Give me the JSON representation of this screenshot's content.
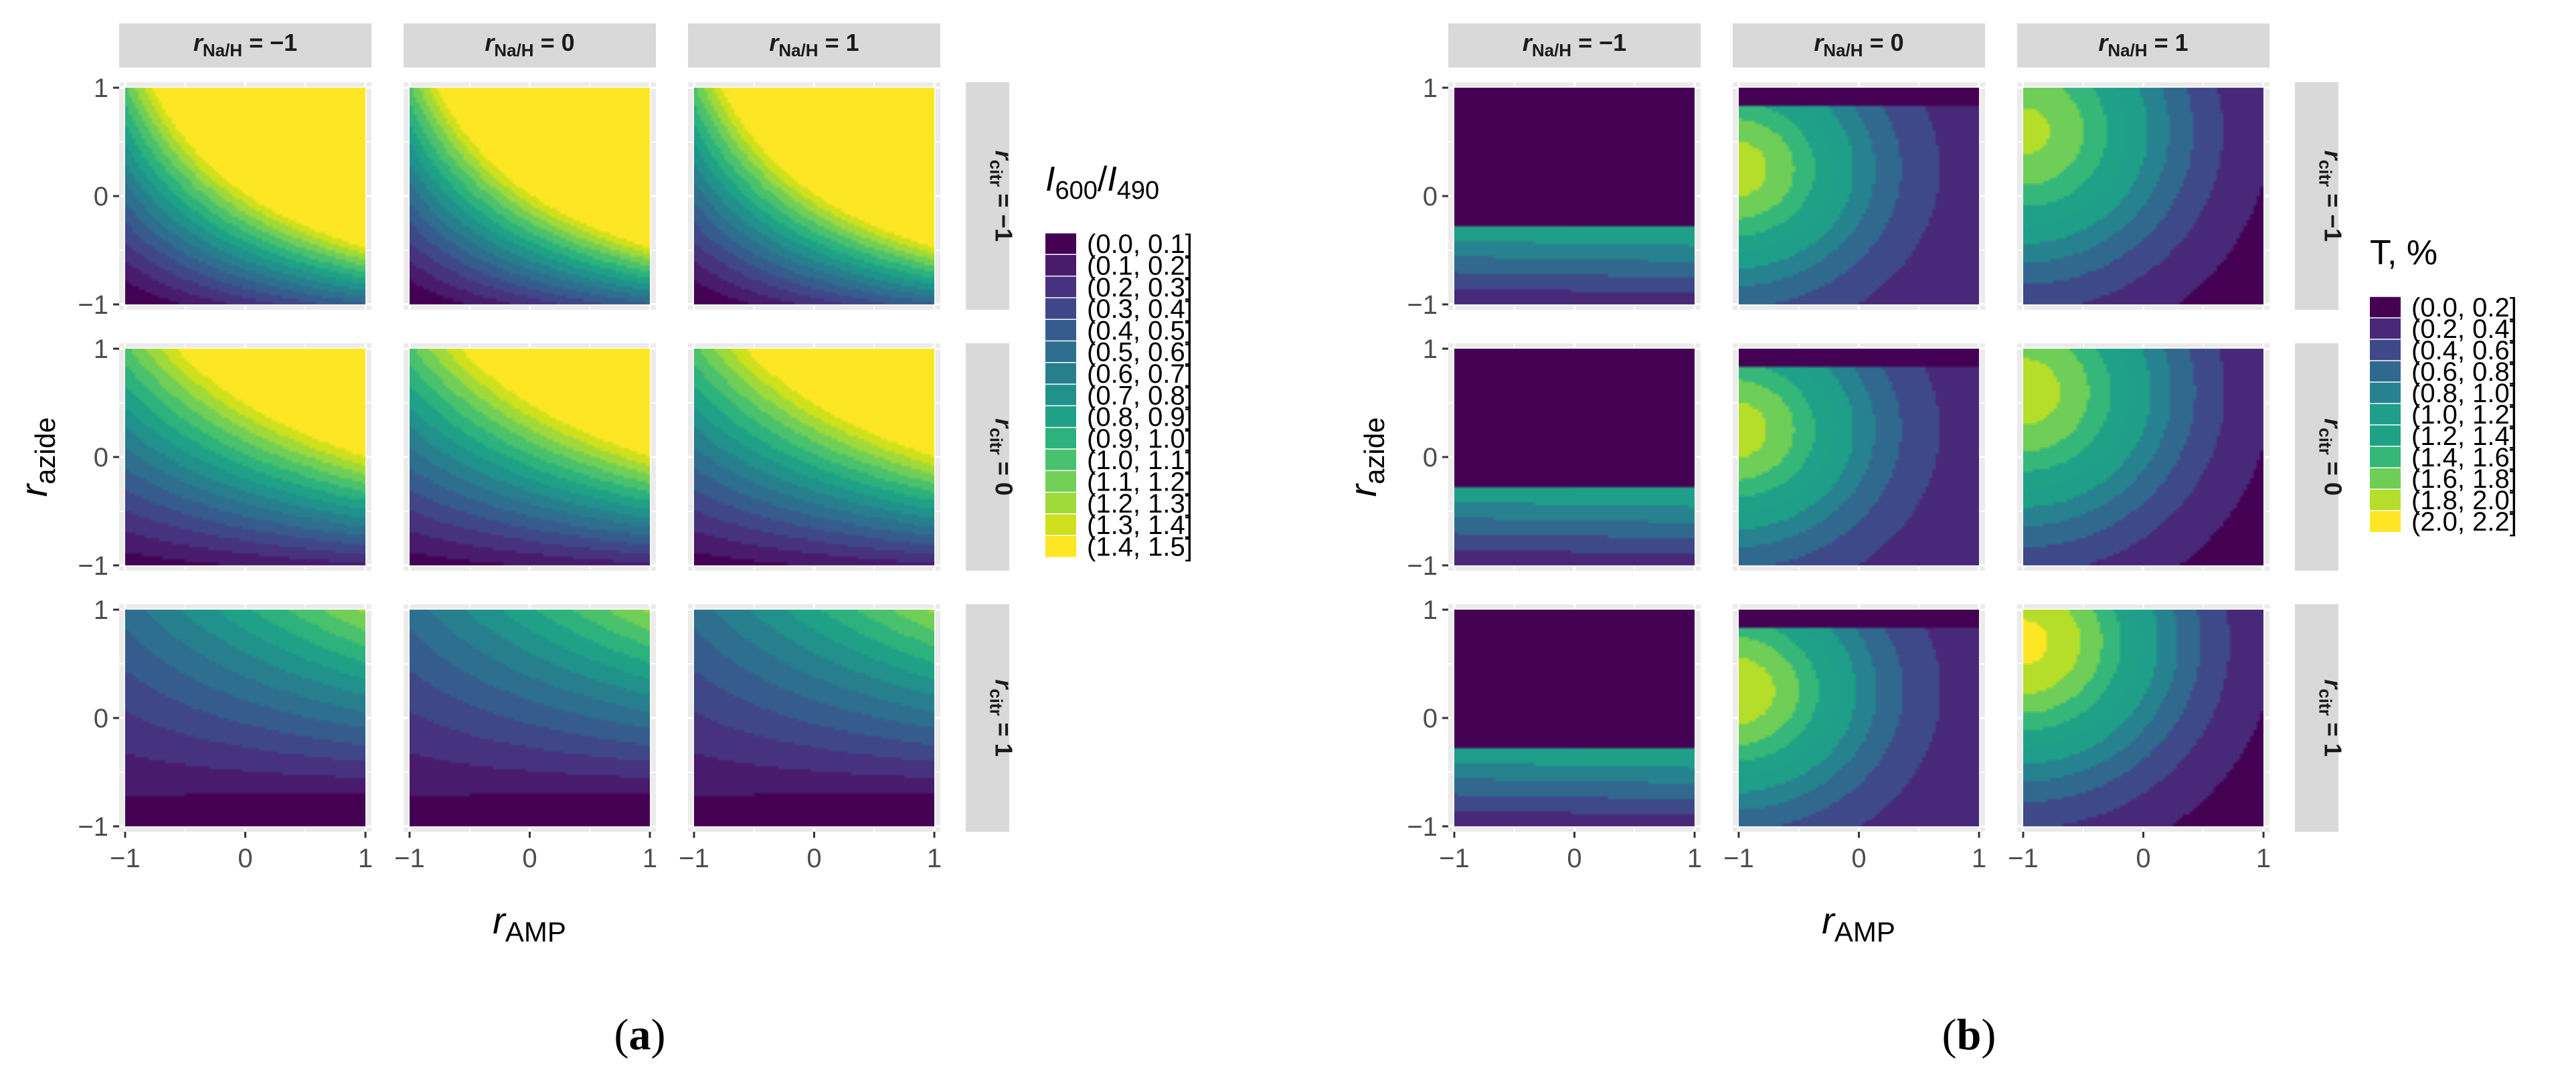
{
  "chart_data": [
    {
      "type": "filled-contour",
      "panel_label": "(a)",
      "legend_title": {
        "num": "I",
        "num_sub": "600",
        "slash": "/",
        "den": "I",
        "den_sub": "490"
      },
      "legend": [
        "(0.0, 0.1]",
        "(0.1, 0.2]",
        "(0.2, 0.3]",
        "(0.3, 0.4]",
        "(0.4, 0.5]",
        "(0.5, 0.6]",
        "(0.6, 0.7]",
        "(0.7, 0.8]",
        "(0.8, 0.9]",
        "(0.9, 1.0]",
        "(1.0, 1.1]",
        "(1.1, 1.2]",
        "(1.2, 1.3]",
        "(1.3, 1.4]",
        "(1.4, 1.5]"
      ],
      "colors": [
        "#440154",
        "#481b6d",
        "#46327e",
        "#3f4788",
        "#365c8d",
        "#2e6e8e",
        "#277f8e",
        "#21918c",
        "#1fa187",
        "#2db27d",
        "#4ac16d",
        "#71cf57",
        "#9fda3a",
        "#cfe11c",
        "#fde725"
      ],
      "col_strips": [
        {
          "pre": "Na/H",
          "val": "= −1"
        },
        {
          "pre": "Na/H",
          "val": "= 0"
        },
        {
          "pre": "Na/H",
          "val": "= 1"
        }
      ],
      "row_strips": [
        {
          "pre": "citr",
          "val": "= −1"
        },
        {
          "pre": "citr",
          "val": "= 0"
        },
        {
          "pre": "citr",
          "val": "= 1"
        }
      ],
      "x_ticks": [
        "−1",
        "0",
        "1"
      ],
      "y_ticks": [
        "1",
        "0",
        "−1"
      ],
      "xlabel": {
        "main": "r",
        "sub": "AMP"
      },
      "ylabel": {
        "main": "r",
        "sub": "azide"
      },
      "xlim": [
        -1,
        1
      ],
      "ylim": [
        -1,
        1
      ],
      "panels": [
        [
          {
            "a": 0.55,
            "bx": 0.25,
            "by": 0.6,
            "c": -0.02
          },
          {
            "a": 0.55,
            "bx": 0.25,
            "by": 0.6,
            "c": -0.02
          },
          {
            "a": 0.55,
            "bx": 0.25,
            "by": 0.6,
            "c": -0.02
          }
        ],
        [
          {
            "a": 0.52,
            "bx": 0.07,
            "by": 0.35,
            "c": 0.035
          },
          {
            "a": 0.52,
            "bx": 0.07,
            "by": 0.35,
            "c": 0.035
          },
          {
            "a": 0.52,
            "bx": 0.07,
            "by": 0.35,
            "c": 0.035
          }
        ],
        [
          {
            "a": 0.26,
            "bx": -0.06,
            "by": 0.2,
            "c": 0.025
          },
          {
            "a": 0.26,
            "bx": -0.06,
            "by": 0.2,
            "c": 0.025
          },
          {
            "a": 0.26,
            "bx": -0.06,
            "by": 0.2,
            "c": 0.025
          }
        ]
      ]
    },
    {
      "type": "filled-contour",
      "panel_label": "(b)",
      "legend_title": {
        "text": "T, %"
      },
      "legend": [
        "(0.0, 0.2]",
        "(0.2, 0.4]",
        "(0.4, 0.6]",
        "(0.6, 0.8]",
        "(0.8, 1.0]",
        "(1.0, 1.2]",
        "(1.2, 1.4]",
        "(1.4, 1.6]",
        "(1.6, 1.8]",
        "(1.8, 2.0]",
        "(2.0, 2.2]"
      ],
      "colors": [
        "#440154",
        "#482878",
        "#3e4989",
        "#31688e",
        "#26828e",
        "#1f9e89",
        "#1fa187",
        "#35b779",
        "#6ece58",
        "#b5de2b",
        "#fde725"
      ],
      "col_strips": [
        {
          "pre": "Na/H",
          "val": "= −1"
        },
        {
          "pre": "Na/H",
          "val": "= 0"
        },
        {
          "pre": "Na/H",
          "val": "= 1"
        }
      ],
      "row_strips": [
        {
          "pre": "citr",
          "val": "= −1"
        },
        {
          "pre": "citr",
          "val": "= 0"
        },
        {
          "pre": "citr",
          "val": "= 1"
        }
      ],
      "x_ticks": [
        "−1",
        "0",
        "1"
      ],
      "y_ticks": [
        "1",
        "0",
        "−1"
      ],
      "xlabel": {
        "main": "r",
        "sub": "AMP"
      },
      "ylabel": {
        "main": "r",
        "sub": "azide"
      },
      "xlim": [
        -1,
        1
      ],
      "ylim": [
        -1,
        1
      ],
      "panels": [
        [
          {
            "kind": "flat",
            "cutoff": -0.27,
            "lo": [
              0.2,
              1.2
            ]
          },
          {
            "kind": "peak",
            "top": 0.82,
            "xc": -1.05,
            "yc": 0.25,
            "peak": 1.9,
            "sx": 1.15,
            "sy": 1.05,
            "c": 0.22
          },
          {
            "kind": "peak",
            "top": 1.1,
            "xc": -1.0,
            "yc": 0.6,
            "peak": 1.85,
            "sx": 1.3,
            "sy": 1.3,
            "c": 0.05
          }
        ],
        [
          {
            "kind": "flat",
            "cutoff": -0.27,
            "lo": [
              0.2,
              1.2
            ]
          },
          {
            "kind": "peak",
            "top": 0.82,
            "xc": -1.05,
            "yc": 0.25,
            "peak": 1.9,
            "sx": 1.15,
            "sy": 1.05,
            "c": 0.22
          },
          {
            "kind": "peak",
            "top": 1.1,
            "xc": -1.0,
            "yc": 0.6,
            "peak": 1.9,
            "sx": 1.3,
            "sy": 1.3,
            "c": 0.05
          }
        ],
        [
          {
            "kind": "flat",
            "cutoff": -0.27,
            "lo": [
              0.2,
              1.2
            ]
          },
          {
            "kind": "peak",
            "top": 0.82,
            "xc": -1.05,
            "yc": 0.25,
            "peak": 1.95,
            "sx": 1.15,
            "sy": 1.05,
            "c": 0.22
          },
          {
            "kind": "peak",
            "top": 1.1,
            "xc": -1.0,
            "yc": 0.7,
            "peak": 2.05,
            "sx": 1.3,
            "sy": 1.3,
            "c": 0.05
          }
        ]
      ]
    }
  ]
}
